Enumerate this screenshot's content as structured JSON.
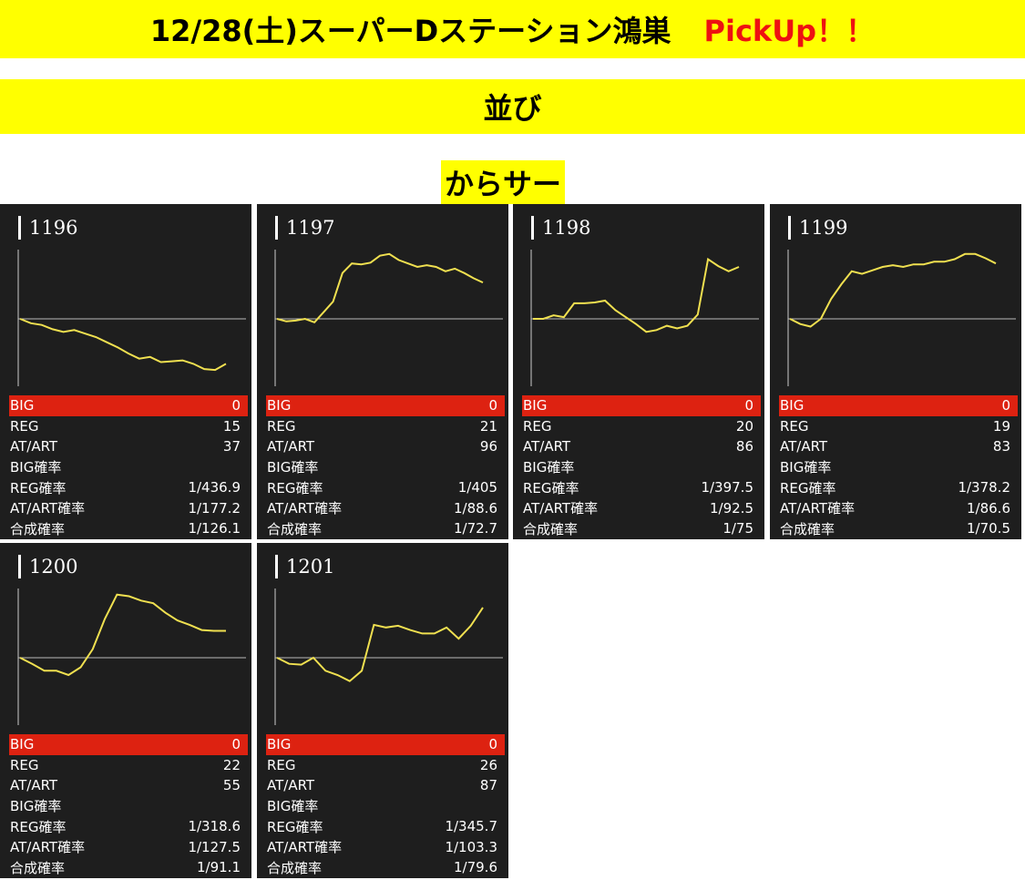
{
  "header": {
    "title": "12/28(土)スーパーDステーション鴻巣",
    "pickup": "PickUp！！",
    "section": "並び",
    "machine_type": "からサー"
  },
  "colors": {
    "banner": "#ffff00",
    "pickup_text": "#ee1111",
    "card_bg": "#1e1e1e",
    "big_row": "#dd2211",
    "line": "#f0e050",
    "baseline": "#bbbbbb"
  },
  "stat_labels": {
    "big": "BIG",
    "reg": "REG",
    "atart": "AT/ART",
    "big_prob": "BIG確率",
    "reg_prob": "REG確率",
    "atart_prob": "AT/ART確率",
    "total_prob": "合成確率"
  },
  "machines": [
    {
      "number": "1196",
      "big": "0",
      "reg": "15",
      "atart": "37",
      "big_prob": "",
      "reg_prob": "1/436.9",
      "atart_prob": "1/177.2",
      "total_prob": "1/126.1"
    },
    {
      "number": "1197",
      "big": "0",
      "reg": "21",
      "atart": "96",
      "big_prob": "",
      "reg_prob": "1/405",
      "atart_prob": "1/88.6",
      "total_prob": "1/72.7"
    },
    {
      "number": "1198",
      "big": "0",
      "reg": "20",
      "atart": "86",
      "big_prob": "",
      "reg_prob": "1/397.5",
      "atart_prob": "1/92.5",
      "total_prob": "1/75"
    },
    {
      "number": "1199",
      "big": "0",
      "reg": "19",
      "atart": "83",
      "big_prob": "",
      "reg_prob": "1/378.2",
      "atart_prob": "1/86.6",
      "total_prob": "1/70.5"
    },
    {
      "number": "1200",
      "big": "0",
      "reg": "22",
      "atart": "55",
      "big_prob": "",
      "reg_prob": "1/318.6",
      "atart_prob": "1/127.5",
      "total_prob": "1/91.1"
    },
    {
      "number": "1201",
      "big": "0",
      "reg": "26",
      "atart": "87",
      "big_prob": "",
      "reg_prob": "1/345.7",
      "atart_prob": "1/103.3",
      "total_prob": "1/79.6"
    }
  ],
  "chart_data": [
    {
      "type": "line",
      "machine": "1196",
      "series": [
        {
          "values": [
            0,
            -5,
            -7,
            -12,
            -15,
            -13,
            -17,
            -21,
            -27,
            -33,
            -40,
            -46,
            -44,
            -50,
            -49,
            -48,
            -52,
            -58,
            -59,
            -52
          ]
        }
      ]
    },
    {
      "type": "line",
      "machine": "1197",
      "series": [
        {
          "values": [
            0,
            -3,
            -2,
            0,
            -4,
            8,
            20,
            53,
            64,
            63,
            65,
            73,
            75,
            68,
            64,
            60,
            62,
            60,
            55,
            58,
            53,
            47,
            42
          ]
        }
      ]
    },
    {
      "type": "line",
      "machine": "1198",
      "series": [
        {
          "values": [
            0,
            0,
            4,
            2,
            18,
            18,
            19,
            21,
            10,
            2,
            -6,
            -15,
            -13,
            -8,
            -11,
            -8,
            5,
            69,
            61,
            55,
            60
          ]
        }
      ]
    },
    {
      "type": "line",
      "machine": "1199",
      "series": [
        {
          "values": [
            0,
            -6,
            -9,
            0,
            23,
            40,
            55,
            52,
            56,
            60,
            62,
            60,
            63,
            63,
            66,
            66,
            69,
            75,
            75,
            70,
            64
          ]
        }
      ]
    },
    {
      "type": "line",
      "machine": "1200",
      "series": [
        {
          "values": [
            0,
            -7,
            -15,
            -15,
            -20,
            -11,
            10,
            45,
            73,
            71,
            66,
            63,
            52,
            43,
            38,
            32,
            31,
            31
          ]
        }
      ]
    },
    {
      "type": "line",
      "machine": "1201",
      "series": [
        {
          "values": [
            0,
            -7,
            -8,
            0,
            -15,
            -20,
            -27,
            -15,
            38,
            35,
            37,
            32,
            28,
            28,
            35,
            22,
            37,
            58
          ]
        }
      ]
    }
  ]
}
